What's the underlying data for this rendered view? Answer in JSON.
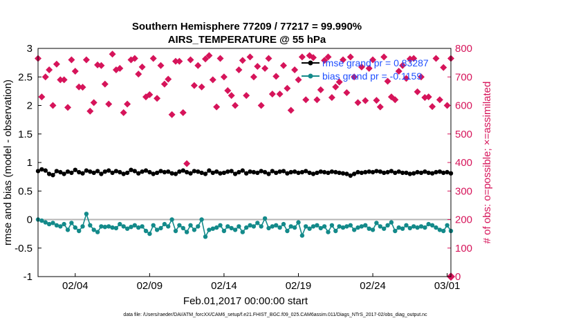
{
  "chart_data": {
    "type": "line",
    "title": "Southern Hemisphere 77209 / 77217 = 99.990%",
    "subtitle": "AIRS_TEMPERATURE @ 55 hPa",
    "xlabel": "Feb.01,2017 00:00:00 start",
    "ylabel": "rmse and bias (model - observation)",
    "y2label": "# of obs: o=possible; ×=assimilated",
    "footer": "data file: /Users/raeder/DAI/ATM_forcXX/CAM6_setup/f.e21.FHIST_BGC.f09_025.CAM6assim.011/Diags_NTrS_2017-02/obs_diag_output.nc",
    "xlim": [
      0.5,
      28.25
    ],
    "ylim": [
      -1,
      3
    ],
    "y2lim": [
      0,
      800
    ],
    "x_ticks": [
      3,
      8,
      13,
      18,
      23,
      28
    ],
    "x_tick_labels": [
      "02/04",
      "02/09",
      "02/14",
      "02/19",
      "02/24",
      "03/01"
    ],
    "y_ticks": [
      -1,
      -0.5,
      0,
      0.5,
      1,
      1.5,
      2,
      2.5,
      3
    ],
    "y_tick_labels": [
      "-1",
      "-0.5",
      "0",
      "0.5",
      "1",
      "1.5",
      "2",
      "2.5",
      "3"
    ],
    "y2_ticks": [
      0,
      100,
      200,
      300,
      400,
      500,
      600,
      700,
      800
    ],
    "y2_tick_labels": [
      "0",
      "100",
      "200",
      "300",
      "400",
      "500",
      "600",
      "700",
      "800"
    ],
    "legend_position": "top-right",
    "colors": {
      "rmse": "#000000",
      "bias": "#138a8a",
      "obs": "#d6145a",
      "legend_text": "#1f4fff",
      "zero_line": "#b4b4b4"
    },
    "series": [
      {
        "name": "rmse grand pr = 0.83287",
        "axis": "left",
        "values": [
          0.85,
          0.88,
          0.86,
          0.8,
          0.78,
          0.85,
          0.83,
          0.8,
          0.84,
          0.82,
          0.87,
          0.83,
          0.81,
          0.86,
          0.84,
          0.82,
          0.85,
          0.8,
          0.84,
          0.86,
          0.82,
          0.85,
          0.83,
          0.8,
          0.82,
          0.87,
          0.85,
          0.81,
          0.84,
          0.86,
          0.83,
          0.8,
          0.82,
          0.85,
          0.83,
          0.84,
          0.81,
          0.8,
          0.84,
          0.86,
          0.83,
          0.81,
          0.85,
          0.84,
          0.82,
          0.8,
          0.86,
          0.82,
          0.84,
          0.81,
          0.82,
          0.84,
          0.85,
          0.8,
          0.83,
          0.86,
          0.81,
          0.84,
          0.83,
          0.82,
          0.85,
          0.83,
          0.8,
          0.85,
          0.82,
          0.84,
          0.85,
          0.81,
          0.83,
          0.84,
          0.82,
          0.83,
          0.85,
          0.82,
          0.8,
          0.82,
          0.84,
          0.83,
          0.82,
          0.84,
          0.83,
          0.82,
          0.81,
          0.8,
          0.77,
          0.8,
          0.83,
          0.82,
          0.83,
          0.84,
          0.83,
          0.85,
          0.84,
          0.82,
          0.83,
          0.85,
          0.82,
          0.84,
          0.82,
          0.82,
          0.8,
          0.81,
          0.83,
          0.82,
          0.84,
          0.82,
          0.81,
          0.83,
          0.84,
          0.82,
          0.83,
          0.81
        ]
      },
      {
        "name": "bias grand pr = -0.1159",
        "axis": "left",
        "values": [
          0.0,
          -0.02,
          -0.05,
          -0.08,
          -0.06,
          -0.1,
          -0.12,
          -0.08,
          -0.18,
          -0.06,
          -0.14,
          -0.2,
          -0.12,
          0.1,
          -0.1,
          -0.18,
          -0.22,
          -0.12,
          -0.13,
          -0.12,
          -0.14,
          -0.15,
          -0.08,
          -0.12,
          -0.16,
          -0.13,
          -0.1,
          -0.14,
          -0.12,
          -0.2,
          -0.25,
          -0.1,
          -0.18,
          -0.15,
          -0.08,
          -0.12,
          0.0,
          -0.2,
          -0.1,
          -0.15,
          -0.22,
          -0.1,
          -0.18,
          -0.12,
          0.0,
          -0.3,
          -0.18,
          -0.16,
          -0.14,
          -0.1,
          -0.2,
          -0.12,
          -0.15,
          -0.18,
          -0.12,
          -0.22,
          -0.14,
          -0.1,
          -0.12,
          -0.06,
          -0.12,
          0.02,
          -0.15,
          -0.12,
          -0.1,
          -0.14,
          -0.08,
          -0.2,
          -0.12,
          -0.14,
          -0.05,
          -0.28,
          -0.12,
          -0.16,
          -0.12,
          -0.1,
          -0.15,
          -0.12,
          -0.22,
          -0.1,
          -0.2,
          -0.12,
          -0.14,
          -0.12,
          -0.1,
          -0.18,
          -0.14,
          -0.12,
          -0.1,
          -0.16,
          -0.18,
          -0.06,
          -0.12,
          -0.16,
          -0.1,
          -0.05,
          -0.2,
          -0.14,
          -0.16,
          -0.1,
          -0.15,
          -0.12,
          -0.14,
          -0.12,
          -0.14,
          -0.08,
          -0.1,
          -0.14,
          -0.18,
          -0.2,
          -0.1,
          -0.2
        ]
      },
      {
        "name": "# of obs",
        "axis": "right",
        "values": [
          765,
          630,
          700,
          725,
          600,
          745,
          690,
          690,
          593,
          760,
          720,
          665,
          664,
          760,
          580,
          610,
          742,
          740,
          675,
          605,
          780,
          725,
          730,
          575,
          605,
          760,
          765,
          710,
          735,
          630,
          638,
          765,
          625,
          740,
          675,
          692,
          568,
          755,
          755,
          575,
          396,
          760,
          670,
          740,
          665,
          763,
          775,
          690,
          595,
          765,
          700,
          652,
          635,
          600,
          725,
          758,
          635,
          770,
          700,
          737,
          600,
          730,
          765,
          640,
          702,
          640,
          740,
          660,
          583,
          725,
          690,
          770,
          620,
          775,
          768,
          620,
          655,
          758,
          770,
          628,
          665,
          682,
          760,
          645,
          770,
          700,
          610,
          735,
          617,
          730,
          760,
          618,
          595,
          770,
          685,
          630,
          620,
          720,
          740,
          695,
          763,
          765,
          648,
          700,
          628,
          630,
          596,
          765,
          620,
          733,
          600,
          765
        ]
      }
    ]
  }
}
